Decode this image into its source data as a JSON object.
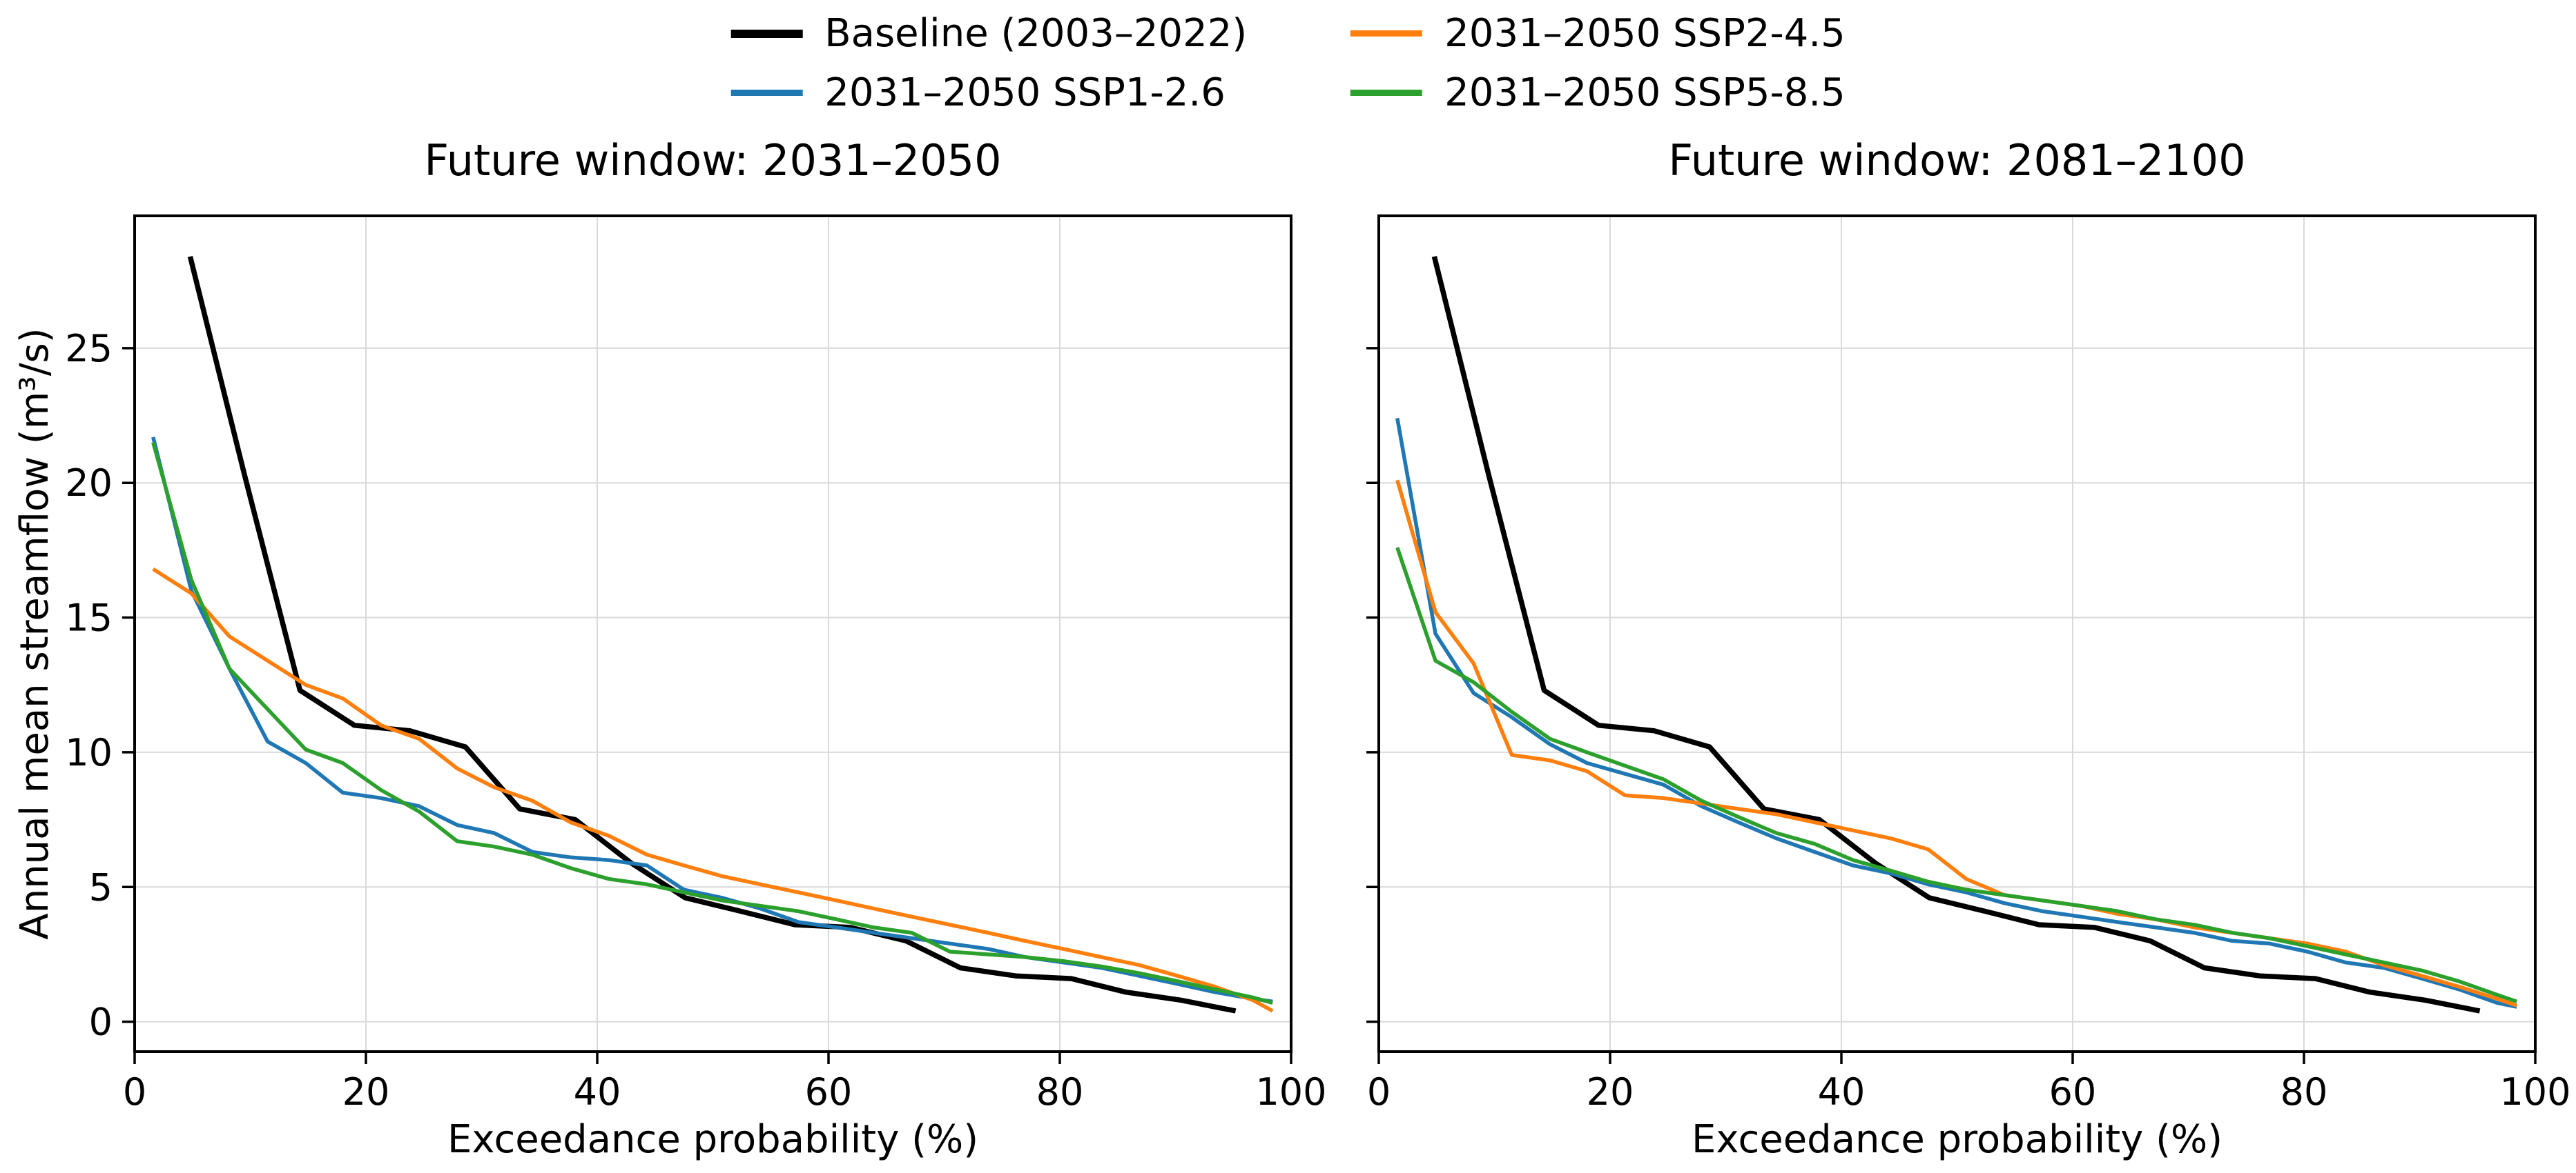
{
  "legend": {
    "items": [
      {
        "label": "Baseline (2003–2022)",
        "color": "#000000"
      },
      {
        "label": "2031–2050 SSP1-2.6",
        "color": "#1f77b4"
      },
      {
        "label": "2031–2050 SSP2-4.5",
        "color": "#ff7f0e"
      },
      {
        "label": "2031–2050 SSP5-8.5",
        "color": "#2ca02c"
      }
    ]
  },
  "chart_data": [
    {
      "type": "line",
      "title": "Future window: 2031–2050",
      "xlabel": "Exceedance probability (%)",
      "ylabel": "Annual mean streamflow (m³/s)",
      "xlim": [
        0,
        100
      ],
      "ylim": [
        -1.11,
        29.91
      ],
      "xticks": [
        0,
        20,
        40,
        60,
        80,
        100
      ],
      "yticks": [
        0,
        5,
        10,
        15,
        20,
        25
      ],
      "ytick_labels_visible": true,
      "grid": true,
      "grid_color": "#d9d9d9",
      "legend_position": "figure top center, 2 columns",
      "series": [
        {
          "name": "Baseline (2003–2022)",
          "color": "#000000",
          "linewidth": 7.5,
          "x": [
            4.8,
            9.5,
            14.3,
            19,
            23.8,
            28.6,
            33.3,
            38.1,
            42.9,
            47.6,
            52.4,
            57.1,
            61.9,
            66.7,
            71.4,
            76.2,
            81,
            85.7,
            90.5,
            95.2
          ],
          "y": [
            28.4,
            20.3,
            12.3,
            11,
            10.8,
            10.2,
            7.9,
            7.5,
            5.9,
            4.6,
            4.1,
            3.6,
            3.5,
            3,
            2,
            1.7,
            1.6,
            1.1,
            0.8,
            0.4
          ]
        },
        {
          "name": "2031–2050 SSP1-2.6",
          "color": "#1f77b4",
          "linewidth": 5.5,
          "x": [
            1.6,
            4.9,
            8.2,
            11.5,
            14.8,
            18,
            21.3,
            24.6,
            27.9,
            31.1,
            34.4,
            37.7,
            41,
            44.3,
            47.5,
            50.8,
            54.1,
            57.4,
            60.7,
            63.9,
            67.2,
            70.5,
            73.8,
            77,
            80.3,
            83.6,
            86.9,
            90.2,
            93.4,
            96.7,
            98.4
          ],
          "y": [
            21.7,
            16,
            13.1,
            10.4,
            9.6,
            8.5,
            8.3,
            8,
            7.3,
            7,
            6.3,
            6.1,
            6,
            5.8,
            4.9,
            4.6,
            4.2,
            3.7,
            3.5,
            3.3,
            3.1,
            2.9,
            2.7,
            2.4,
            2.2,
            2,
            1.7,
            1.4,
            1.1,
            0.85,
            0.75
          ]
        },
        {
          "name": "2031–2050 SSP2-4.5",
          "color": "#ff7f0e",
          "linewidth": 5.5,
          "x": [
            1.6,
            4.9,
            8.2,
            11.5,
            14.8,
            18,
            21.3,
            24.6,
            27.9,
            31.1,
            34.4,
            37.7,
            41,
            44.3,
            47.5,
            50.8,
            54.1,
            57.4,
            60.7,
            63.9,
            67.2,
            70.5,
            73.8,
            77,
            80.3,
            83.6,
            86.9,
            90.2,
            93.4,
            96.7,
            98.4
          ],
          "y": [
            16.8,
            15.9,
            14.3,
            13.4,
            12.5,
            12,
            11,
            10.5,
            9.4,
            8.7,
            8.2,
            7.4,
            6.9,
            6.2,
            5.8,
            5.4,
            5.1,
            4.8,
            4.5,
            4.2,
            3.9,
            3.6,
            3.3,
            3,
            2.7,
            2.4,
            2.1,
            1.7,
            1.3,
            0.8,
            0.4
          ]
        },
        {
          "name": "2031–2050 SSP5-8.5",
          "color": "#2ca02c",
          "linewidth": 5.5,
          "x": [
            1.6,
            4.9,
            8.2,
            11.5,
            14.8,
            18,
            21.3,
            24.6,
            27.9,
            31.1,
            34.4,
            37.7,
            41,
            44.3,
            47.5,
            50.8,
            54.1,
            57.4,
            60.7,
            63.9,
            67.2,
            70.5,
            73.8,
            77,
            80.3,
            83.6,
            86.9,
            90.2,
            93.4,
            96.7,
            98.4
          ],
          "y": [
            21.5,
            16.4,
            13.1,
            11.6,
            10.1,
            9.6,
            8.6,
            7.8,
            6.7,
            6.5,
            6.2,
            5.7,
            5.3,
            5.1,
            4.8,
            4.5,
            4.3,
            4.1,
            3.8,
            3.5,
            3.3,
            2.6,
            2.5,
            2.4,
            2.25,
            2.05,
            1.8,
            1.5,
            1.2,
            0.9,
            0.7
          ]
        }
      ]
    },
    {
      "type": "line",
      "title": "Future window: 2081–2100",
      "xlabel": "Exceedance probability (%)",
      "ylabel": "",
      "xlim": [
        0,
        100
      ],
      "ylim": [
        -1.11,
        29.91
      ],
      "xticks": [
        0,
        20,
        40,
        60,
        80,
        100
      ],
      "yticks": [
        0,
        5,
        10,
        15,
        20,
        25
      ],
      "ytick_labels_visible": false,
      "grid": true,
      "grid_color": "#d9d9d9",
      "legend_position": "shared figure legend",
      "series": [
        {
          "name": "Baseline (2003–2022)",
          "color": "#000000",
          "linewidth": 7.5,
          "x": [
            4.8,
            9.5,
            14.3,
            19,
            23.8,
            28.6,
            33.3,
            38.1,
            42.9,
            47.6,
            52.4,
            57.1,
            61.9,
            66.7,
            71.4,
            76.2,
            81,
            85.7,
            90.5,
            95.2
          ],
          "y": [
            28.4,
            20.3,
            12.3,
            11,
            10.8,
            10.2,
            7.9,
            7.5,
            5.9,
            4.6,
            4.1,
            3.6,
            3.5,
            3,
            2,
            1.7,
            1.6,
            1.1,
            0.8,
            0.4
          ]
        },
        {
          "name": "2031–2050 SSP1-2.6",
          "color": "#1f77b4",
          "linewidth": 5.5,
          "x": [
            1.6,
            4.9,
            8.2,
            11.5,
            14.8,
            18,
            21.3,
            24.6,
            27.9,
            31.1,
            34.4,
            37.7,
            41,
            44.3,
            47.5,
            50.8,
            54.1,
            57.4,
            60.7,
            63.9,
            67.2,
            70.5,
            73.8,
            77,
            80.3,
            83.6,
            86.9,
            90.2,
            93.4,
            96.7,
            98.4
          ],
          "y": [
            22.4,
            14.4,
            12.2,
            11.3,
            10.3,
            9.6,
            9.2,
            8.8,
            8,
            7.4,
            6.8,
            6.3,
            5.8,
            5.5,
            5.1,
            4.8,
            4.4,
            4.1,
            3.9,
            3.7,
            3.5,
            3.3,
            3,
            2.9,
            2.6,
            2.2,
            2,
            1.6,
            1.2,
            0.7,
            0.55
          ]
        },
        {
          "name": "2031–2050 SSP2-4.5",
          "color": "#ff7f0e",
          "linewidth": 5.5,
          "x": [
            1.6,
            4.9,
            8.2,
            11.5,
            14.8,
            18,
            21.3,
            24.6,
            27.9,
            31.1,
            34.4,
            37.7,
            41,
            44.3,
            47.5,
            50.8,
            54.1,
            57.4,
            60.7,
            63.9,
            67.2,
            70.5,
            73.8,
            77,
            80.3,
            83.6,
            86.9,
            90.2,
            93.4,
            96.7,
            98.4
          ],
          "y": [
            20.1,
            15.2,
            13.3,
            9.9,
            9.7,
            9.3,
            8.4,
            8.3,
            8.1,
            7.9,
            7.7,
            7.4,
            7.1,
            6.8,
            6.4,
            5.3,
            4.7,
            4.5,
            4.3,
            4,
            3.8,
            3.5,
            3.3,
            3.1,
            2.9,
            2.6,
            2.1,
            1.7,
            1.3,
            0.85,
            0.6
          ]
        },
        {
          "name": "2031–2050 SSP5-8.5",
          "color": "#2ca02c",
          "linewidth": 5.5,
          "x": [
            1.6,
            4.9,
            8.2,
            11.5,
            14.8,
            18,
            21.3,
            24.6,
            27.9,
            31.1,
            34.4,
            37.7,
            41,
            44.3,
            47.5,
            50.8,
            54.1,
            57.4,
            60.7,
            63.9,
            67.2,
            70.5,
            73.8,
            77,
            80.3,
            83.6,
            86.9,
            90.2,
            93.4,
            96.7,
            98.4
          ],
          "y": [
            17.6,
            13.4,
            12.6,
            11.5,
            10.5,
            10,
            9.5,
            9,
            8.2,
            7.6,
            7,
            6.6,
            6,
            5.6,
            5.2,
            4.9,
            4.7,
            4.5,
            4.3,
            4.1,
            3.8,
            3.6,
            3.3,
            3.1,
            2.8,
            2.5,
            2.2,
            1.9,
            1.5,
            1,
            0.75
          ]
        }
      ]
    }
  ]
}
